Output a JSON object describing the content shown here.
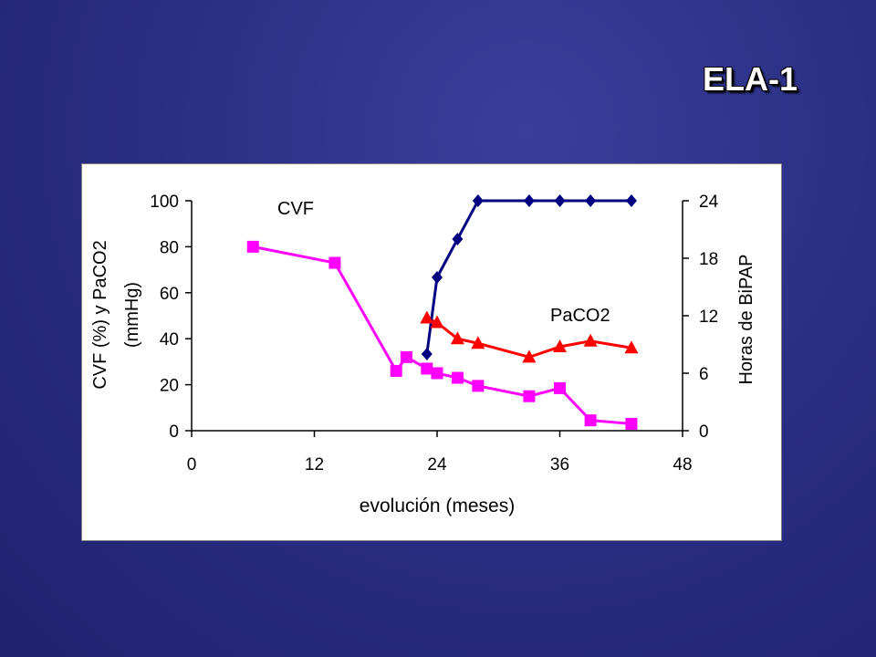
{
  "slide": {
    "title": "ELA-1"
  },
  "chart_data": {
    "type": "line",
    "xlabel": "evolución (meses)",
    "ylabel": [
      "CVF (%) y PaCO2",
      "(mmHg)"
    ],
    "y2label": "Horas de BiPAP",
    "xlim": [
      0,
      48
    ],
    "ylim": [
      0,
      100
    ],
    "y2lim": [
      0,
      24
    ],
    "xticks": [
      "0",
      "12",
      "24",
      "36",
      "48"
    ],
    "yticks": [
      "0",
      "20",
      "40",
      "60",
      "80",
      "100"
    ],
    "y2ticks": [
      "0",
      "6",
      "12",
      "18",
      "24"
    ],
    "grid": false,
    "series": [
      {
        "name": "CVF",
        "axis": "left",
        "color": "#ff00ff",
        "marker": "square",
        "x": [
          6,
          14,
          20,
          21,
          23,
          24,
          26,
          28,
          33,
          36,
          39,
          43
        ],
        "y": [
          80,
          73,
          26,
          32,
          27,
          25,
          23,
          19.5,
          15,
          18.5,
          4.5,
          3
        ]
      },
      {
        "name": "PaCO2",
        "axis": "left",
        "color": "#ff0000",
        "marker": "triangle",
        "x": [
          23,
          24,
          26,
          28,
          33,
          36,
          39,
          43
        ],
        "y": [
          49,
          47,
          40,
          38,
          32,
          36.5,
          39,
          36
        ]
      },
      {
        "name": "",
        "axis": "right",
        "color": "#000080",
        "marker": "diamond",
        "x": [
          23,
          24,
          26,
          28,
          33,
          36,
          39,
          43
        ],
        "y": [
          8,
          16,
          20,
          24,
          24,
          24,
          24,
          24
        ]
      }
    ]
  }
}
